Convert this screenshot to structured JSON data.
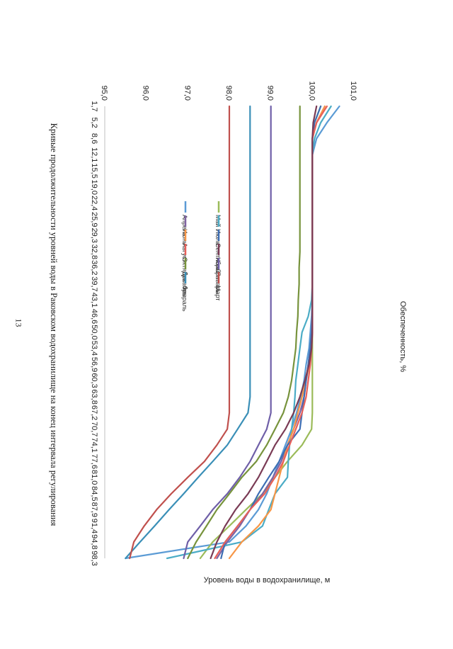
{
  "page_number": "13",
  "colors": {
    "april": "#5b9bd5",
    "may": "#9bbb59",
    "june": "#8064a2",
    "july": "#4bacc6",
    "august": "#f79646",
    "september": "#3d6eb4",
    "october": "#e8605a",
    "november": "#7a3b55",
    "december": "#77933c",
    "january": "#6f5fa8",
    "february": "#3a8fb7",
    "march": "#c0504d",
    "axis": "#bfbfbf"
  },
  "chart_data": {
    "type": "line",
    "title": "Кривые продолжительности уровней воды в Раковском водохранилище на конец интервала регулирования",
    "xlabel": "Обеспеченность, %",
    "ylabel": "Уровень воды в водохранилище, м",
    "ylim": [
      95.0,
      101.0
    ],
    "y_ticks": [
      "95,0",
      "96,0",
      "97,0",
      "98,0",
      "99,0",
      "100,0",
      "101,0"
    ],
    "y_tick_values": [
      95,
      96,
      97,
      98,
      99,
      100,
      101
    ],
    "x_ticks": [
      "1,7",
      "5,2",
      "8,6",
      "12,1",
      "15,5",
      "19,0",
      "22,4",
      "25,9",
      "29,3",
      "32,8",
      "36,2",
      "39,7",
      "43,1",
      "46,6",
      "50,0",
      "53,4",
      "56,9",
      "60,3",
      "63,8",
      "67,2",
      "70,7",
      "74,1",
      "77,6",
      "81,0",
      "84,5",
      "87,9",
      "91,4",
      "94,8",
      "98,3"
    ],
    "x": [
      1.7,
      5.2,
      8.6,
      12.1,
      15.5,
      19.0,
      22.4,
      25.9,
      29.3,
      32.8,
      36.2,
      39.7,
      43.1,
      46.6,
      50.0,
      53.4,
      56.9,
      60.3,
      63.8,
      67.2,
      70.7,
      74.1,
      77.6,
      81.0,
      84.5,
      87.9,
      91.4,
      94.8,
      98.3
    ],
    "legend_position": "center",
    "series": [
      {
        "name": "Апрель",
        "key": "april",
        "values": [
          100.65,
          100.35,
          100.1,
          100,
          100,
          100,
          100,
          100,
          100,
          100,
          100,
          100,
          100,
          99.98,
          99.95,
          99.92,
          99.85,
          99.8,
          99.72,
          99.62,
          99.5,
          99.35,
          99.2,
          99.05,
          98.9,
          98.7,
          98.4,
          98.0,
          95.5
        ]
      },
      {
        "name": "Май",
        "key": "may",
        "values": [
          100.2,
          100.05,
          100,
          100,
          100,
          100,
          100,
          100,
          100,
          100,
          100,
          100,
          100,
          100,
          100,
          100,
          100,
          100,
          100,
          100,
          99.98,
          99.75,
          99.4,
          99.1,
          98.8,
          98.4,
          98.0,
          97.6,
          97.3
        ]
      },
      {
        "name": "Июнь",
        "key": "june",
        "values": [
          100.3,
          100.1,
          100,
          100,
          100,
          100,
          100,
          100,
          100,
          100,
          100,
          100,
          100,
          100,
          99.98,
          99.95,
          99.9,
          99.85,
          99.8,
          99.7,
          99.55,
          99.4,
          99.25,
          99.05,
          98.8,
          98.5,
          98.25,
          97.95,
          97.7
        ]
      },
      {
        "name": "Июль",
        "key": "july",
        "values": [
          100.45,
          100.2,
          100.05,
          100,
          100,
          100,
          100,
          100,
          100,
          100,
          100,
          100,
          99.98,
          99.9,
          99.75,
          99.7,
          99.65,
          99.6,
          99.58,
          99.55,
          99.5,
          99.45,
          99.42,
          99.4,
          99.1,
          98.95,
          98.8,
          98.3,
          96.5
        ]
      },
      {
        "name": "Август",
        "key": "august",
        "values": [
          100.3,
          100.1,
          100,
          100,
          100,
          100,
          100,
          100,
          100,
          100,
          100,
          100,
          100,
          100,
          100,
          99.98,
          99.92,
          99.85,
          99.75,
          99.65,
          99.55,
          99.4,
          99.3,
          99.2,
          99.1,
          99.0,
          98.7,
          98.3,
          98.0
        ]
      },
      {
        "name": "Сентябрь",
        "key": "september",
        "values": [
          100.2,
          100.05,
          100,
          100,
          100,
          100,
          100,
          100,
          100,
          100,
          100,
          100,
          100,
          100,
          99.98,
          99.95,
          99.9,
          99.85,
          99.8,
          99.75,
          99.7,
          99.4,
          99.2,
          98.95,
          98.7,
          98.5,
          98.2,
          97.9,
          97.8
        ]
      },
      {
        "name": "Октябрь",
        "key": "october",
        "values": [
          100.35,
          100.1,
          100,
          100,
          100,
          100,
          100,
          100,
          100,
          100,
          100,
          100,
          100,
          100,
          100,
          99.98,
          99.95,
          99.9,
          99.85,
          99.75,
          99.6,
          99.45,
          99.3,
          99.1,
          98.85,
          98.5,
          98.2,
          97.9,
          97.65
        ]
      },
      {
        "name": "Ноябрь",
        "key": "november",
        "values": [
          100.1,
          100.02,
          100,
          100,
          100,
          100,
          100,
          100,
          100,
          100,
          100,
          100,
          100,
          100,
          100,
          99.98,
          99.92,
          99.82,
          99.7,
          99.55,
          99.35,
          99.1,
          98.9,
          98.7,
          98.45,
          98.15,
          97.9,
          97.7,
          97.55
        ]
      },
      {
        "name": "Декабрь",
        "key": "december",
        "values": [
          99.7,
          99.7,
          99.7,
          99.7,
          99.7,
          99.7,
          99.7,
          99.7,
          99.7,
          99.7,
          99.68,
          99.68,
          99.66,
          99.65,
          99.62,
          99.6,
          99.55,
          99.5,
          99.42,
          99.3,
          99.1,
          98.9,
          98.65,
          98.3,
          98.0,
          97.7,
          97.45,
          97.2,
          97.0
        ]
      },
      {
        "name": "Январь",
        "key": "january",
        "values": [
          99.0,
          99.0,
          99.0,
          99.0,
          99.0,
          99.0,
          99.0,
          99.0,
          99.0,
          99.0,
          99.0,
          99.0,
          99.0,
          99.0,
          99.0,
          99.0,
          99.0,
          99.0,
          99.0,
          99.0,
          98.9,
          98.7,
          98.5,
          98.25,
          97.95,
          97.6,
          97.3,
          97.0,
          96.9
        ]
      },
      {
        "name": "Февраль",
        "key": "february",
        "values": [
          98.5,
          98.5,
          98.5,
          98.5,
          98.5,
          98.5,
          98.5,
          98.5,
          98.5,
          98.5,
          98.5,
          98.5,
          98.5,
          98.5,
          98.5,
          98.5,
          98.5,
          98.5,
          98.5,
          98.45,
          98.2,
          97.95,
          97.6,
          97.25,
          96.9,
          96.55,
          96.2,
          95.85,
          95.5
        ]
      },
      {
        "name": "Март",
        "key": "march",
        "values": [
          98.0,
          98.0,
          98.0,
          98.0,
          98.0,
          98.0,
          98.0,
          98.0,
          98.0,
          98.0,
          98.0,
          98.0,
          98.0,
          98.0,
          98.0,
          98.0,
          98.0,
          98.0,
          98.0,
          98.0,
          97.95,
          97.7,
          97.4,
          97.0,
          96.6,
          96.25,
          95.95,
          95.7,
          95.6
        ]
      }
    ]
  }
}
